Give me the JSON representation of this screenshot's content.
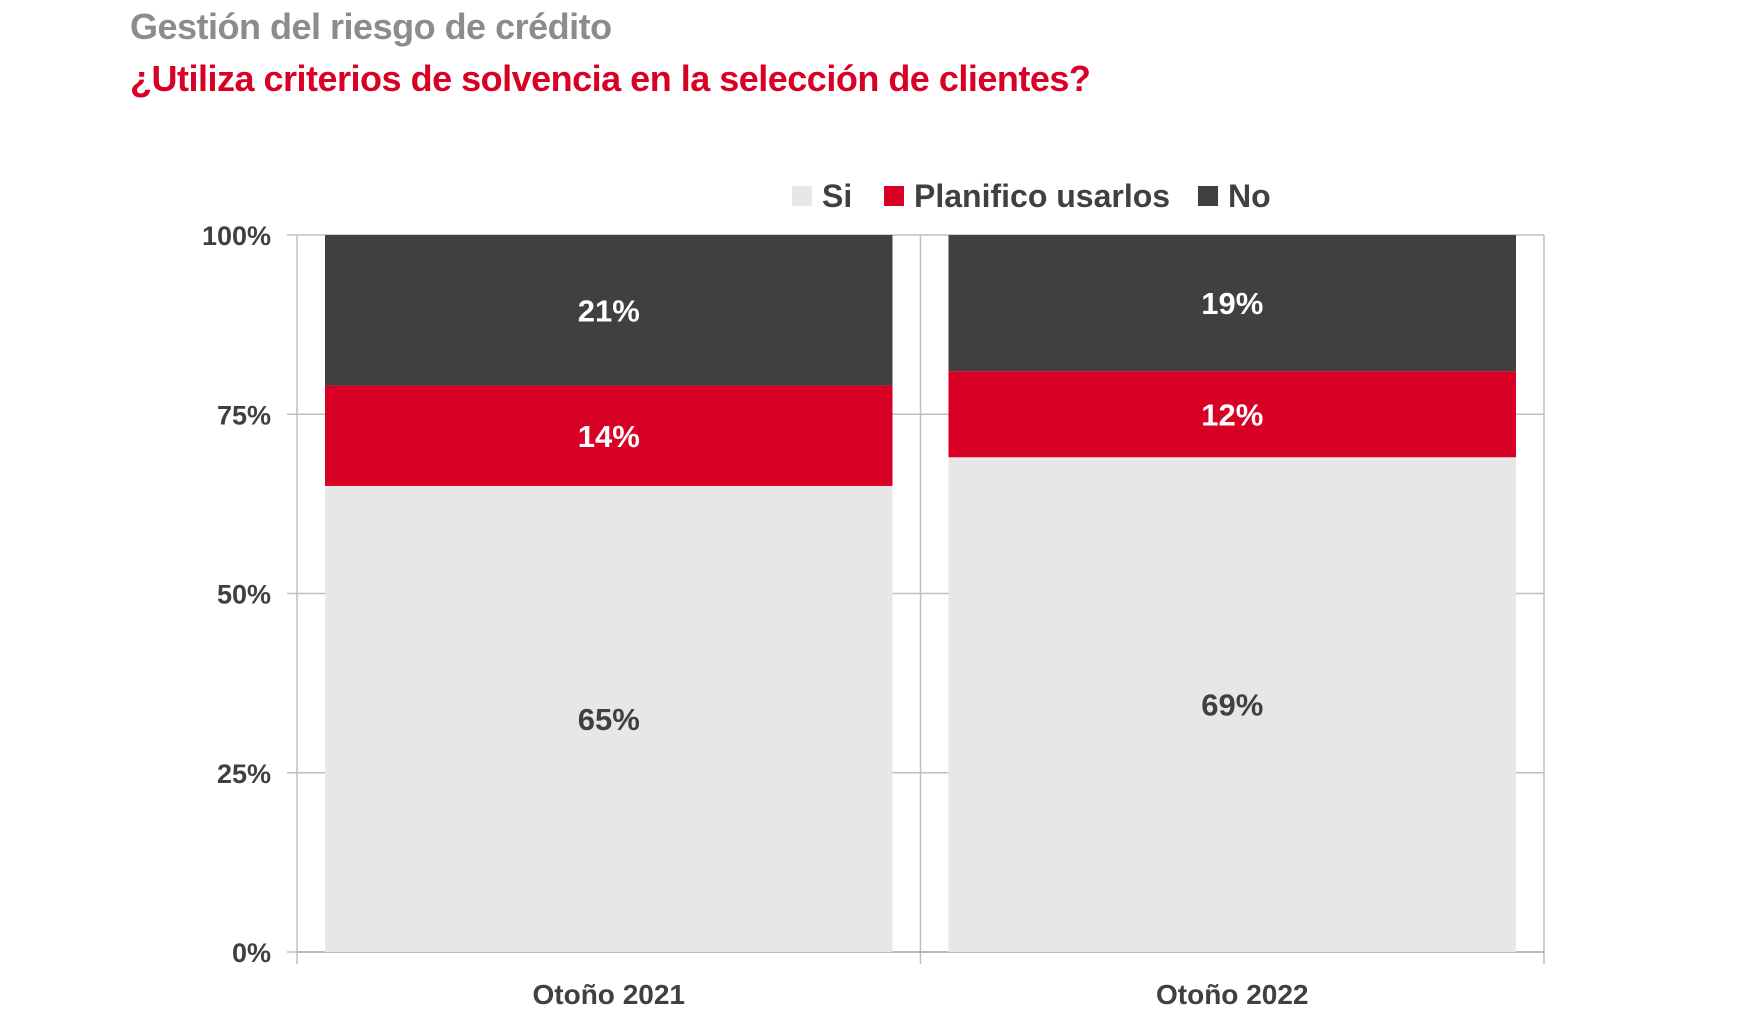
{
  "header": {
    "title": "Gestión del riesgo de crédito",
    "subtitle": "¿Utiliza criterios de solvencia en la selección de clientes?"
  },
  "colors": {
    "si": "#e7e7e7",
    "planifico": "#d90025",
    "no": "#404040",
    "label_on_light": "#404040",
    "label_on_dark": "#ffffff",
    "grid": "#bfbfbf"
  },
  "chart_data": {
    "type": "bar",
    "stacked": true,
    "title": "Gestión del riesgo de crédito",
    "subtitle": "¿Utiliza criterios de solvencia en la selección de clientes?",
    "categories": [
      "Otoño 2021",
      "Otoño 2022"
    ],
    "series": [
      {
        "name": "Si",
        "values": [
          65,
          69
        ],
        "labels": [
          "65%",
          "69%"
        ]
      },
      {
        "name": "Planifico usarlos",
        "values": [
          14,
          12
        ],
        "labels": [
          "14%",
          "12%"
        ]
      },
      {
        "name": "No",
        "values": [
          21,
          19
        ],
        "labels": [
          "21%",
          "19%"
        ]
      }
    ],
    "ylim": [
      0,
      100
    ],
    "yticks": [
      0,
      25,
      50,
      75,
      100
    ],
    "ytick_labels": [
      "0%",
      "25%",
      "50%",
      "75%",
      "100%"
    ],
    "xlabel": "",
    "ylabel": "",
    "legend": "top",
    "grid": true
  }
}
